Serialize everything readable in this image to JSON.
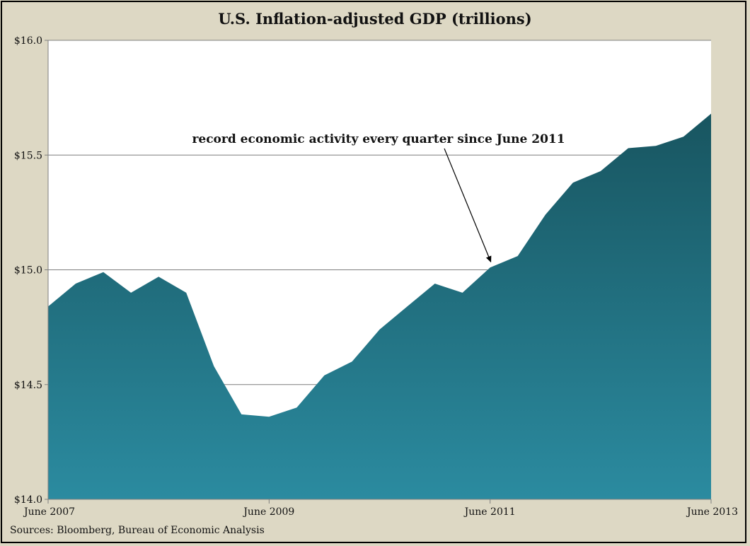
{
  "chart_data": {
    "type": "area",
    "title": "U.S. Inflation-adjusted GDP (trillions)",
    "xlabel": "",
    "ylabel": "",
    "x": [
      "Jun 2007",
      "Sep 2007",
      "Dec 2007",
      "Mar 2008",
      "Jun 2008",
      "Sep 2008",
      "Dec 2008",
      "Mar 2009",
      "Jun 2009",
      "Sep 2009",
      "Dec 2009",
      "Mar 2010",
      "Jun 2010",
      "Sep 2010",
      "Dec 2010",
      "Mar 2011",
      "Jun 2011",
      "Sep 2011",
      "Dec 2011",
      "Mar 2012",
      "Jun 2012",
      "Sep 2012",
      "Dec 2012",
      "Mar 2013",
      "Jun 2013"
    ],
    "series": [
      {
        "values": [
          14.84,
          14.94,
          14.99,
          14.9,
          14.97,
          14.9,
          14.58,
          14.37,
          14.36,
          14.4,
          14.54,
          14.6,
          14.74,
          14.84,
          14.94,
          14.9,
          15.01,
          15.06,
          15.24,
          15.38,
          15.43,
          15.53,
          15.54,
          15.58,
          15.68
        ]
      }
    ],
    "xticks": [
      "June 2007",
      "June 2009",
      "June 2011",
      "June 2013"
    ],
    "xtick_positions": [
      "Jun 2007",
      "Jun 2009",
      "Jun 2011",
      "Jun 2013"
    ],
    "yticks": [
      "$14.0",
      "$14.5",
      "$15.0",
      "$15.5",
      "$16.0"
    ],
    "ytick_values": [
      14.0,
      14.5,
      15.0,
      15.5,
      16.0
    ],
    "ylim": [
      14.0,
      16.0
    ],
    "grid": true,
    "annotation": {
      "text": "record economic activity every quarter since June 2011",
      "target": "Jun 2011"
    },
    "colors": {
      "fill_top": "#185560",
      "fill_bottom": "#2b8ba0",
      "plot_bg": "#ffffff",
      "page_bg": "#ddd8c4"
    }
  },
  "source": "Sources: Bloomberg, Bureau of Economic Analysis"
}
